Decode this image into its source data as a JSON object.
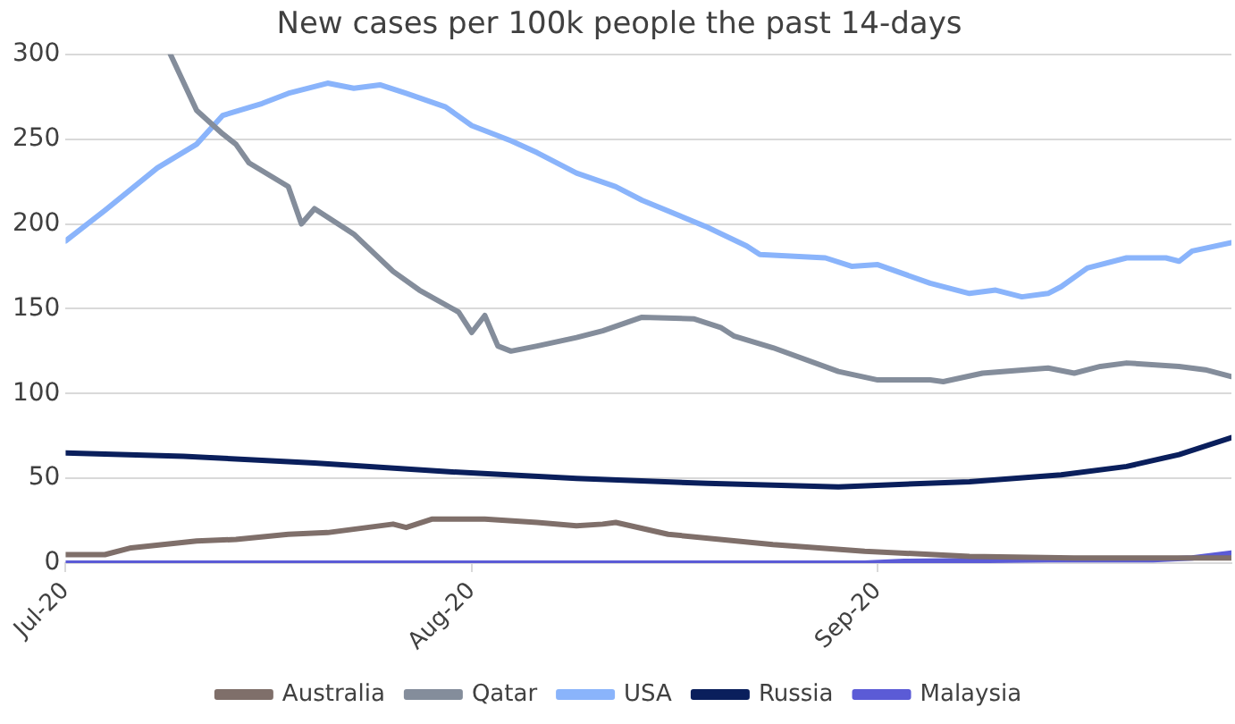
{
  "chart_data": {
    "type": "line",
    "title": "New cases per 100k people the past 14-days",
    "xlim": [
      "2020-07-01",
      "2020-09-28"
    ],
    "xticks": [
      {
        "value": "2020-07-01",
        "label": "Jul-20"
      },
      {
        "value": "2020-08-01",
        "label": "Aug-20"
      },
      {
        "value": "2020-09-01",
        "label": "Sep-20"
      }
    ],
    "ylim": [
      0,
      300
    ],
    "yticks": [
      0,
      50,
      100,
      150,
      200,
      250,
      300
    ],
    "grid": "y",
    "legend": "bottom",
    "marker": "none",
    "line_style": "solid",
    "series": [
      {
        "name": "Australia",
        "color": "#7f6f6a",
        "x": [
          "2020-07-01",
          "2020-07-04",
          "2020-07-06",
          "2020-07-11",
          "2020-07-14",
          "2020-07-18",
          "2020-07-21",
          "2020-07-26",
          "2020-07-27",
          "2020-07-29",
          "2020-08-02",
          "2020-08-06",
          "2020-08-09",
          "2020-08-11",
          "2020-08-12",
          "2020-08-16",
          "2020-08-24",
          "2020-08-31",
          "2020-09-08",
          "2020-09-16",
          "2020-09-28"
        ],
        "values": [
          5,
          5,
          9,
          13,
          14,
          17,
          18,
          23,
          21,
          26,
          26,
          24,
          22,
          23,
          24,
          17,
          11,
          7,
          4,
          3,
          3
        ]
      },
      {
        "name": "Qatar",
        "color": "#848d9b",
        "x": [
          "2020-07-09",
          "2020-07-11",
          "2020-07-13",
          "2020-07-14",
          "2020-07-15",
          "2020-07-18",
          "2020-07-19",
          "2020-07-20",
          "2020-07-23",
          "2020-07-26",
          "2020-07-28",
          "2020-07-31",
          "2020-08-01",
          "2020-08-02",
          "2020-08-03",
          "2020-08-04",
          "2020-08-06",
          "2020-08-09",
          "2020-08-11",
          "2020-08-14",
          "2020-08-18",
          "2020-08-20",
          "2020-08-21",
          "2020-08-24",
          "2020-08-29",
          "2020-09-01",
          "2020-09-05",
          "2020-09-06",
          "2020-09-09",
          "2020-09-14",
          "2020-09-16",
          "2020-09-18",
          "2020-09-20",
          "2020-09-24",
          "2020-09-26",
          "2020-09-28"
        ],
        "values": [
          300,
          267,
          253,
          247,
          236,
          222,
          200,
          209,
          194,
          172,
          161,
          148,
          136,
          146,
          128,
          125,
          128,
          133,
          137,
          145,
          144,
          139,
          134,
          127,
          113,
          108,
          108,
          107,
          112,
          115,
          112,
          116,
          118,
          116,
          114,
          110
        ]
      },
      {
        "name": "USA",
        "color": "#8ab4fb",
        "x": [
          "2020-07-01",
          "2020-07-04",
          "2020-07-08",
          "2020-07-11",
          "2020-07-13",
          "2020-07-16",
          "2020-07-18",
          "2020-07-21",
          "2020-07-23",
          "2020-07-25",
          "2020-07-27",
          "2020-07-30",
          "2020-08-01",
          "2020-08-04",
          "2020-08-06",
          "2020-08-09",
          "2020-08-12",
          "2020-08-14",
          "2020-08-19",
          "2020-08-22",
          "2020-08-23",
          "2020-08-28",
          "2020-08-30",
          "2020-09-01",
          "2020-09-05",
          "2020-09-08",
          "2020-09-10",
          "2020-09-12",
          "2020-09-14",
          "2020-09-15",
          "2020-09-17",
          "2020-09-20",
          "2020-09-23",
          "2020-09-24",
          "2020-09-25",
          "2020-09-28"
        ],
        "values": [
          190,
          208,
          233,
          247,
          264,
          271,
          277,
          283,
          280,
          282,
          277,
          269,
          258,
          249,
          242,
          230,
          222,
          214,
          198,
          187,
          182,
          180,
          175,
          176,
          165,
          159,
          161,
          157,
          159,
          163,
          174,
          180,
          180,
          178,
          184,
          189
        ]
      },
      {
        "name": "Russia",
        "color": "#0a1f5c",
        "x": [
          "2020-07-01",
          "2020-07-10",
          "2020-07-20",
          "2020-07-30",
          "2020-08-09",
          "2020-08-19",
          "2020-08-29",
          "2020-09-08",
          "2020-09-15",
          "2020-09-20",
          "2020-09-24",
          "2020-09-28"
        ],
        "values": [
          65,
          63,
          59,
          54,
          50,
          47,
          45,
          48,
          52,
          57,
          64,
          74
        ]
      },
      {
        "name": "Malaysia",
        "color": "#5b5bd6",
        "x": [
          "2020-07-01",
          "2020-08-31",
          "2020-09-03",
          "2020-09-14",
          "2020-09-22",
          "2020-09-25",
          "2020-09-28"
        ],
        "values": [
          0,
          0,
          1,
          2,
          2,
          3,
          6
        ]
      }
    ]
  }
}
